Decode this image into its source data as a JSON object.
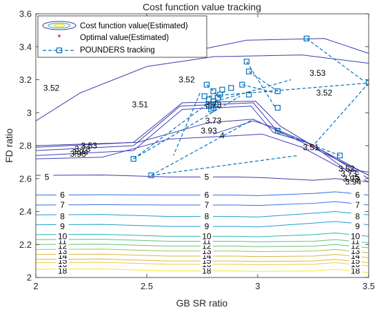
{
  "chart_data": {
    "type": "contour",
    "title": "Cost function value tracking",
    "xlabel": "GB SR ratio",
    "ylabel": "FD ratio",
    "xlim": [
      2,
      3.5
    ],
    "ylim": [
      2,
      3.6
    ],
    "xticks": [
      "2",
      "2.5",
      "3",
      "3.5"
    ],
    "yticks": [
      "2",
      "2.2",
      "2.4",
      "2.6",
      "2.8",
      "3",
      "3.2",
      "3.4",
      "3.6"
    ],
    "legend": {
      "position": "top-left",
      "entries": [
        {
          "label": "Cost function value(Estimated)",
          "kind": "contour"
        },
        {
          "label": "Optimal value(Estimated)",
          "kind": "marker-asterisk",
          "color": "#ff0000"
        },
        {
          "label": "POUNDERS tracking",
          "kind": "dashed-square",
          "color": "#0072bd"
        }
      ]
    },
    "contour_levels": [
      {
        "level": 18,
        "y_left": 2.05,
        "y_mid": 2.04,
        "y_right": 2.05,
        "labels": [
          [
            2.12,
            "18"
          ],
          [
            2.77,
            "18"
          ],
          [
            3.44,
            "18"
          ]
        ]
      },
      {
        "level": 16,
        "y_left": 2.09,
        "y_mid": 2.08,
        "y_right": 2.09,
        "labels": [
          [
            2.12,
            "16"
          ],
          [
            2.77,
            "16"
          ],
          [
            3.44,
            "16"
          ]
        ]
      },
      {
        "level": 15,
        "y_left": 2.11,
        "y_mid": 2.1,
        "y_right": 2.11,
        "labels": [
          [
            2.12,
            "15"
          ],
          [
            2.77,
            "15"
          ],
          [
            3.44,
            "15"
          ]
        ]
      },
      {
        "level": 14,
        "y_left": 2.14,
        "y_mid": 2.13,
        "y_right": 2.14,
        "labels": [
          [
            2.12,
            "14"
          ],
          [
            2.77,
            "14"
          ],
          [
            3.44,
            "14"
          ]
        ]
      },
      {
        "level": 13,
        "y_left": 2.17,
        "y_mid": 2.16,
        "y_right": 2.17,
        "labels": [
          [
            2.12,
            "13"
          ],
          [
            2.77,
            "13"
          ],
          [
            3.44,
            "13"
          ]
        ]
      },
      {
        "level": 12,
        "y_left": 2.2,
        "y_mid": 2.19,
        "y_right": 2.2,
        "labels": [
          [
            2.12,
            "12"
          ],
          [
            2.77,
            "12"
          ],
          [
            3.44,
            "12"
          ]
        ]
      },
      {
        "level": 11,
        "y_left": 2.23,
        "y_mid": 2.22,
        "y_right": 2.23,
        "labels": [
          [
            2.12,
            "11"
          ],
          [
            2.77,
            "11"
          ],
          [
            3.44,
            "11"
          ]
        ]
      },
      {
        "level": 10,
        "y_left": 2.26,
        "y_mid": 2.25,
        "y_right": 2.27,
        "labels": [
          [
            2.12,
            "10"
          ],
          [
            2.77,
            "10"
          ],
          [
            3.44,
            "10"
          ]
        ]
      },
      {
        "level": 9,
        "y_left": 2.32,
        "y_mid": 2.31,
        "y_right": 2.34,
        "labels": [
          [
            2.12,
            "9"
          ],
          [
            2.77,
            "9"
          ],
          [
            3.45,
            "9"
          ]
        ]
      },
      {
        "level": 8,
        "y_left": 2.38,
        "y_mid": 2.37,
        "y_right": 2.4,
        "labels": [
          [
            2.12,
            "8"
          ],
          [
            2.77,
            "8"
          ],
          [
            3.45,
            "8"
          ]
        ]
      },
      {
        "level": 7,
        "y_left": 2.44,
        "y_mid": 2.44,
        "y_right": 2.46,
        "labels": [
          [
            2.12,
            "7"
          ],
          [
            2.77,
            "7"
          ],
          [
            3.45,
            "7"
          ]
        ]
      },
      {
        "level": 6,
        "y_left": 2.5,
        "y_mid": 2.5,
        "y_right": 2.52,
        "labels": [
          [
            2.12,
            "6"
          ],
          [
            2.77,
            "6"
          ],
          [
            3.45,
            "6"
          ]
        ]
      },
      {
        "level": 5,
        "y_left": 2.62,
        "y_mid": 2.61,
        "y_right": 2.6,
        "labels": [
          [
            2.05,
            "5"
          ],
          [
            2.77,
            "5"
          ],
          [
            3.45,
            "5"
          ]
        ]
      }
    ],
    "extra_contour_labels": [
      {
        "x": 2.07,
        "y": 3.15,
        "text": "3.52"
      },
      {
        "x": 2.68,
        "y": 3.2,
        "text": "3.52"
      },
      {
        "x": 3.27,
        "y": 3.24,
        "text": "3.53"
      },
      {
        "x": 3.3,
        "y": 3.12,
        "text": "3.52"
      },
      {
        "x": 2.47,
        "y": 3.05,
        "text": "3.51"
      },
      {
        "x": 3.24,
        "y": 2.79,
        "text": "3.51"
      },
      {
        "x": 2.8,
        "y": 3.05,
        "text": "3.73"
      },
      {
        "x": 2.8,
        "y": 2.95,
        "text": "3.73"
      },
      {
        "x": 2.78,
        "y": 2.89,
        "text": "3.93"
      },
      {
        "x": 2.84,
        "y": 2.86,
        "text": "4"
      },
      {
        "x": 2.24,
        "y": 2.8,
        "text": "3.53"
      },
      {
        "x": 2.21,
        "y": 2.78,
        "text": "3.73"
      },
      {
        "x": 2.19,
        "y": 2.75,
        "text": "3.93"
      },
      {
        "x": 2.2,
        "y": 2.76,
        "text": "3.94"
      },
      {
        "x": 3.4,
        "y": 2.66,
        "text": "3.52"
      },
      {
        "x": 3.41,
        "y": 2.63,
        "text": "3.73"
      },
      {
        "x": 3.42,
        "y": 2.6,
        "text": "3.93"
      },
      {
        "x": 3.43,
        "y": 2.58,
        "text": "3.94"
      }
    ],
    "optimal_point": {
      "x": 3.24,
      "y": 2.8
    },
    "tracking_segments": [
      [
        [
          2.44,
          2.72
        ],
        [
          2.92,
          3.1
        ]
      ],
      [
        [
          2.44,
          2.72
        ],
        [
          2.85,
          3.13
        ]
      ],
      [
        [
          2.52,
          2.62
        ],
        [
          2.98,
          2.96
        ]
      ],
      [
        [
          2.52,
          2.62
        ],
        [
          3.18,
          2.74
        ]
      ],
      [
        [
          2.74,
          3.12
        ],
        [
          2.62,
          2.74
        ]
      ],
      [
        [
          2.76,
          3.05
        ],
        [
          3.15,
          3.2
        ]
      ],
      [
        [
          2.78,
          3.1
        ],
        [
          3.5,
          3.18
        ]
      ],
      [
        [
          3.22,
          3.45
        ],
        [
          3.48,
          3.19
        ]
      ],
      [
        [
          3.5,
          3.18
        ],
        [
          3.25,
          2.8
        ]
      ],
      [
        [
          2.95,
          3.31
        ],
        [
          3.08,
          3.03
        ]
      ],
      [
        [
          2.96,
          3.25
        ],
        [
          3.09,
          3.13
        ]
      ],
      [
        [
          2.93,
          3.17
        ],
        [
          3.08,
          3.12
        ]
      ],
      [
        [
          3.08,
          2.89
        ],
        [
          3.37,
          2.74
        ]
      ],
      [
        [
          2.77,
          3.17
        ],
        [
          2.84,
          3.08
        ]
      ]
    ],
    "tracking_points": [
      {
        "x": 2.44,
        "y": 2.72
      },
      {
        "x": 2.52,
        "y": 2.62
      },
      {
        "x": 2.77,
        "y": 3.17
      },
      {
        "x": 2.76,
        "y": 3.1
      },
      {
        "x": 2.78,
        "y": 3.04
      },
      {
        "x": 2.79,
        "y": 3.02
      },
      {
        "x": 2.8,
        "y": 3.07
      },
      {
        "x": 2.8,
        "y": 3.13
      },
      {
        "x": 2.81,
        "y": 3.05
      },
      {
        "x": 2.82,
        "y": 3.09
      },
      {
        "x": 2.83,
        "y": 3.11
      },
      {
        "x": 2.78,
        "y": 3.08
      },
      {
        "x": 2.8,
        "y": 3.03
      },
      {
        "x": 2.84,
        "y": 3.14
      },
      {
        "x": 2.88,
        "y": 3.15
      },
      {
        "x": 2.93,
        "y": 3.17
      },
      {
        "x": 2.96,
        "y": 3.11
      },
      {
        "x": 2.95,
        "y": 3.31
      },
      {
        "x": 2.96,
        "y": 3.25
      },
      {
        "x": 3.09,
        "y": 3.13
      },
      {
        "x": 3.09,
        "y": 3.03
      },
      {
        "x": 3.09,
        "y": 2.89
      },
      {
        "x": 3.22,
        "y": 3.45
      },
      {
        "x": 3.5,
        "y": 3.18
      },
      {
        "x": 3.37,
        "y": 2.74
      }
    ]
  }
}
